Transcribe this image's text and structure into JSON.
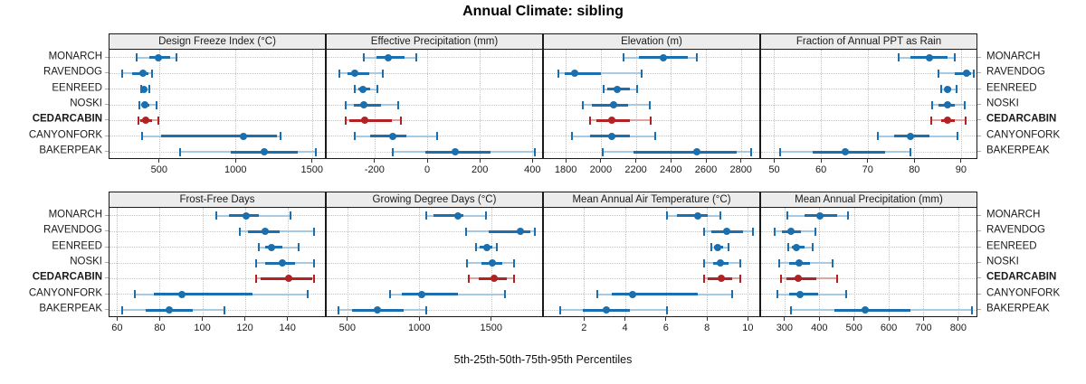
{
  "title": "Annual Climate: sibling",
  "caption": "5th-25th-50th-75th-95th Percentiles",
  "sites": [
    "MONARCH",
    "RAVENDOG",
    "EENREED",
    "NOSKI",
    "CEDARCABIN",
    "CANYONFORK",
    "BAKERPEAK"
  ],
  "highlight_site": "CEDARCABIN",
  "colors": {
    "series": "#1b6fae",
    "series_light": "#a7c9e2",
    "highlight": "#b22222",
    "highlight_light": "#ddA6a2",
    "strip_bg": "#ececec",
    "grid": "#c6c6c6"
  },
  "chart_data": {
    "type": "dotplot-interval-trellis",
    "title": "Annual Climate: sibling",
    "xlabel": "5th-25th-50th-75th-95th Percentiles",
    "percentiles": [
      "5th",
      "25th",
      "50th",
      "75th",
      "95th"
    ],
    "categories": [
      "MONARCH",
      "RAVENDOG",
      "EENREED",
      "NOSKI",
      "CEDARCABIN",
      "CANYONFORK",
      "BAKERPEAK"
    ],
    "highlight": "CEDARCABIN",
    "panels": [
      {
        "title": "Design Freeze Index (°C)",
        "row": 0,
        "col": 0,
        "xlim": [
          170,
          1590
        ],
        "ticks": [
          500,
          1000,
          1500
        ],
        "values": [
          [
            350,
            430,
            490,
            565,
            605
          ],
          [
            255,
            320,
            387,
            427,
            450
          ],
          [
            377,
            388,
            397,
            415,
            433
          ],
          [
            367,
            385,
            403,
            428,
            476
          ],
          [
            358,
            373,
            407,
            447,
            490
          ],
          [
            385,
            505,
            1046,
            1265,
            1290
          ],
          [
            630,
            960,
            1180,
            1400,
            1520
          ]
        ]
      },
      {
        "title": "Effective Precipitation (mm)",
        "row": 0,
        "col": 1,
        "xlim": [
          -385,
          440
        ],
        "ticks": [
          -200,
          0,
          200,
          400
        ],
        "values": [
          [
            -245,
            -195,
            -150,
            -88,
            -43
          ],
          [
            -337,
            -307,
            -277,
            -225,
            -173
          ],
          [
            -277,
            -266,
            -248,
            -219,
            -191
          ],
          [
            -312,
            -283,
            -243,
            -179,
            -115
          ],
          [
            -314,
            -300,
            -239,
            -139,
            -104
          ],
          [
            -279,
            -219,
            -135,
            -81,
            35
          ],
          [
            -133,
            -10,
            102,
            237,
            404
          ]
        ]
      },
      {
        "title": "Elevation (m)",
        "row": 0,
        "col": 2,
        "xlim": [
          1670,
          2910
        ],
        "ticks": [
          1800,
          2000,
          2200,
          2400,
          2600,
          2800
        ],
        "values": [
          [
            2125,
            2215,
            2350,
            2490,
            2545
          ],
          [
            1755,
            1790,
            1845,
            1995,
            2230
          ],
          [
            2010,
            2030,
            2087,
            2160,
            2200
          ],
          [
            1890,
            1945,
            2070,
            2150,
            2275
          ],
          [
            1935,
            1970,
            2060,
            2160,
            2280
          ],
          [
            1830,
            1935,
            2060,
            2160,
            2305
          ],
          [
            2005,
            2180,
            2545,
            2770,
            2855
          ]
        ]
      },
      {
        "title": "Fraction of Annual PPT as Rain",
        "row": 0,
        "col": 3,
        "xlim": [
          47,
          93.5
        ],
        "ticks": [
          50,
          60,
          70,
          80,
          90
        ],
        "values": [
          [
            76.5,
            79,
            83,
            87,
            88.5
          ],
          [
            85,
            88.5,
            91,
            92,
            92.5
          ],
          [
            85.5,
            86.3,
            87,
            87.7,
            88.8
          ],
          [
            83.6,
            85,
            87,
            88.5,
            90.5
          ],
          [
            83.5,
            85.5,
            87,
            88.5,
            90.7
          ],
          [
            72,
            75.5,
            79,
            83,
            89
          ],
          [
            51,
            58,
            65,
            73.5,
            79
          ]
        ]
      },
      {
        "title": "Frost-Free Days",
        "row": 1,
        "col": 0,
        "xlim": [
          56,
          158
        ],
        "ticks": [
          60,
          80,
          100,
          120,
          140
        ],
        "values": [
          [
            106,
            112,
            120,
            126,
            141
          ],
          [
            117,
            121,
            129,
            136,
            152
          ],
          [
            126,
            129,
            132,
            137,
            145
          ],
          [
            125,
            129,
            137,
            143,
            152
          ],
          [
            125,
            127,
            140,
            151,
            152
          ],
          [
            68,
            77,
            90,
            123,
            149
          ],
          [
            62,
            73,
            84,
            95,
            110
          ]
        ]
      },
      {
        "title": "Growing Degree Days (°C)",
        "row": 1,
        "col": 1,
        "xlim": [
          350,
          1860
        ],
        "ticks": [
          500,
          1000,
          1500
        ],
        "values": [
          [
            1045,
            1095,
            1260,
            1300,
            1460
          ],
          [
            1320,
            1475,
            1695,
            1765,
            1795
          ],
          [
            1390,
            1415,
            1462,
            1500,
            1530
          ],
          [
            1325,
            1425,
            1500,
            1570,
            1655
          ],
          [
            1335,
            1405,
            1515,
            1605,
            1655
          ],
          [
            790,
            875,
            1010,
            1265,
            1590
          ],
          [
            430,
            525,
            705,
            885,
            1045
          ]
        ]
      },
      {
        "title": "Mean Annual Air Temperature (°C)",
        "row": 1,
        "col": 2,
        "xlim": [
          0,
          10.6
        ],
        "ticks": [
          2,
          4,
          6,
          8,
          10
        ],
        "values": [
          [
            6.0,
            6.5,
            7.5,
            8.0,
            8.6
          ],
          [
            7.8,
            8.15,
            8.9,
            9.7,
            10.2
          ],
          [
            8.15,
            8.3,
            8.5,
            8.75,
            9.0
          ],
          [
            7.8,
            8.25,
            8.6,
            9.0,
            9.6
          ],
          [
            7.8,
            8.0,
            8.65,
            9.2,
            9.6
          ],
          [
            2.6,
            3.3,
            4.35,
            7.5,
            9.2
          ],
          [
            0.8,
            1.9,
            3.05,
            4.2,
            6.0
          ]
        ]
      },
      {
        "title": "Mean Annual Precipitation (mm)",
        "row": 1,
        "col": 3,
        "xlim": [
          230,
          855
        ],
        "ticks": [
          300,
          400,
          500,
          600,
          700,
          800
        ],
        "values": [
          [
            305,
            355,
            400,
            450,
            480
          ],
          [
            270,
            290,
            317,
            345,
            385
          ],
          [
            308,
            319,
            332,
            355,
            378
          ],
          [
            282,
            310,
            339,
            370,
            437
          ],
          [
            287,
            302,
            337,
            390,
            448
          ],
          [
            278,
            310,
            343,
            393,
            474
          ],
          [
            315,
            440,
            530,
            660,
            838
          ]
        ]
      }
    ]
  }
}
